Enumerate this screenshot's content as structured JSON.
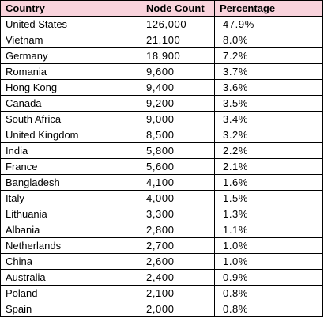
{
  "headers": [
    "Country",
    "Node Count",
    "Percentage"
  ],
  "rows": [
    {
      "country": "United States",
      "count": "126,000",
      "pct": "47.9%"
    },
    {
      "country": "Vietnam",
      "count": "21,100",
      "pct": "8.0%"
    },
    {
      "country": "Germany",
      "count": "18,900",
      "pct": "7.2%"
    },
    {
      "country": "Romania",
      "count": "9,600",
      "pct": "3.7%"
    },
    {
      "country": "Hong Kong",
      "count": "9,400",
      "pct": "3.6%"
    },
    {
      "country": "Canada",
      "count": "9,200",
      "pct": "3.5%"
    },
    {
      "country": "South Africa",
      "count": "9,000",
      "pct": "3.4%"
    },
    {
      "country": "United Kingdom",
      "count": "8,500",
      "pct": "3.2%"
    },
    {
      "country": "India",
      "count": "5,800",
      "pct": "2.2%"
    },
    {
      "country": "France",
      "count": "5,600",
      "pct": "2.1%"
    },
    {
      "country": "Bangladesh",
      "count": "4,100",
      "pct": "1.6%"
    },
    {
      "country": "Italy",
      "count": "4,000",
      "pct": "1.5%"
    },
    {
      "country": "Lithuania",
      "count": "3,300",
      "pct": "1.3%"
    },
    {
      "country": "Albania",
      "count": "2,800",
      "pct": "1.1%"
    },
    {
      "country": "Netherlands",
      "count": "2,700",
      "pct": "1.0%"
    },
    {
      "country": "China",
      "count": "2,600",
      "pct": "1.0%"
    },
    {
      "country": "Australia",
      "count": "2,400",
      "pct": "0.9%"
    },
    {
      "country": "Poland",
      "count": "2,100",
      "pct": "0.8%"
    },
    {
      "country": "Spain",
      "count": "2,000",
      "pct": "0.8%"
    }
  ],
  "colors": {
    "header_bg": "#f9d3dc",
    "border": "#000000"
  }
}
